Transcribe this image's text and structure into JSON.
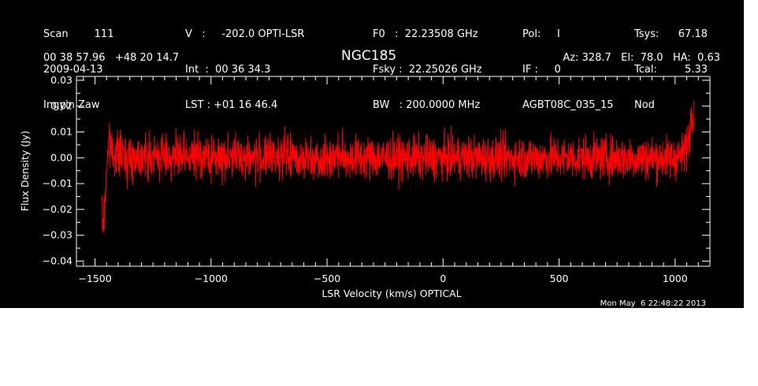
{
  "header": {
    "col1": [
      "Scan        111",
      "2009-04-13",
      "Ingyin Zaw"
    ],
    "col2": [
      "V   :     -202.0 OPTI-LSR",
      "Int  :  00 36 34.3",
      "LST : +01 16 46.4"
    ],
    "col3": [
      "F0   :  22.23508 GHz",
      "Fsky :  22.25026 GHz",
      "BW   : 200.0000 MHz"
    ],
    "col4": [
      "Pol:     I",
      "IF :     0",
      "AGBT08C_035_15"
    ],
    "col5": [
      "Tsys:",
      "Tcal:",
      "Nod"
    ],
    "col6": [
      "67.18",
      "5.33"
    ],
    "coords": "00 38 57.96   +48 20 14.7",
    "source": "NGC185",
    "azel": "Az: 328.7   El:  78.0   HA:  0.63"
  },
  "timestamp": "Mon May  6 22:48:22 2013",
  "colors": {
    "background": "#000000",
    "axes": "#ffffff",
    "trace": "#ff0000"
  },
  "chart_data": {
    "type": "line",
    "title": "NGC185",
    "xlabel": "LSR Velocity (km/s) OPTICAL",
    "ylabel": "Flux Density (Jy)",
    "xlim": [
      -1580,
      1150
    ],
    "ylim": [
      -0.042,
      0.0315
    ],
    "x_ticks": [
      -1500,
      -1000,
      -500,
      0,
      500,
      1000
    ],
    "x_tick_labels": [
      "−1500",
      "−1000",
      "−500",
      "0",
      "500",
      "1000"
    ],
    "y_ticks": [
      -0.04,
      -0.03,
      -0.02,
      -0.01,
      0.0,
      0.01,
      0.02,
      0.03
    ],
    "y_tick_labels": [
      "−0.04",
      "−0.03",
      "−0.02",
      "−0.01",
      "0.00",
      "0.01",
      "0.02",
      "0.03"
    ],
    "grid": false,
    "series": [
      {
        "x": [
          -1470,
          -1465,
          -1460,
          -1455,
          -1450,
          -1445,
          -1440,
          -1430,
          -1410,
          -1380,
          -1350,
          -1300,
          -1250,
          -1200,
          -1150,
          -1100,
          -1050,
          -1000,
          -950,
          -900,
          -850,
          -800,
          -750,
          -700,
          -650,
          -600,
          -550,
          -500,
          -450,
          -400,
          -350,
          -300,
          -250,
          -200,
          -150,
          -100,
          -50,
          0,
          50,
          100,
          150,
          200,
          250,
          300,
          350,
          400,
          450,
          500,
          550,
          600,
          650,
          700,
          750,
          800,
          850,
          900,
          950,
          1000,
          1030,
          1050,
          1060,
          1065,
          1070,
          1075,
          1080
        ],
        "y": [
          -0.02,
          -0.028,
          -0.022,
          -0.012,
          -0.004,
          0.002,
          0.006,
          0.003,
          0.002,
          0.001,
          0.0,
          0.001,
          0.0,
          0.001,
          0.0,
          0.0,
          0.001,
          0.0,
          0.0,
          0.001,
          0.0,
          0.0,
          0.0,
          0.001,
          0.0,
          0.0,
          0.0,
          0.0,
          0.001,
          0.0,
          0.0,
          0.0,
          0.0,
          0.0,
          0.0,
          0.0,
          0.0,
          0.0,
          0.0,
          0.0,
          0.0,
          0.0,
          0.0,
          0.0,
          0.0,
          0.0,
          0.0,
          0.0,
          0.0,
          0.0,
          0.0,
          0.0,
          0.0,
          0.0,
          0.0,
          0.0,
          0.0,
          0.0,
          0.001,
          0.004,
          0.008,
          0.012,
          0.016,
          0.019,
          0.021
        ]
      }
    ]
  }
}
